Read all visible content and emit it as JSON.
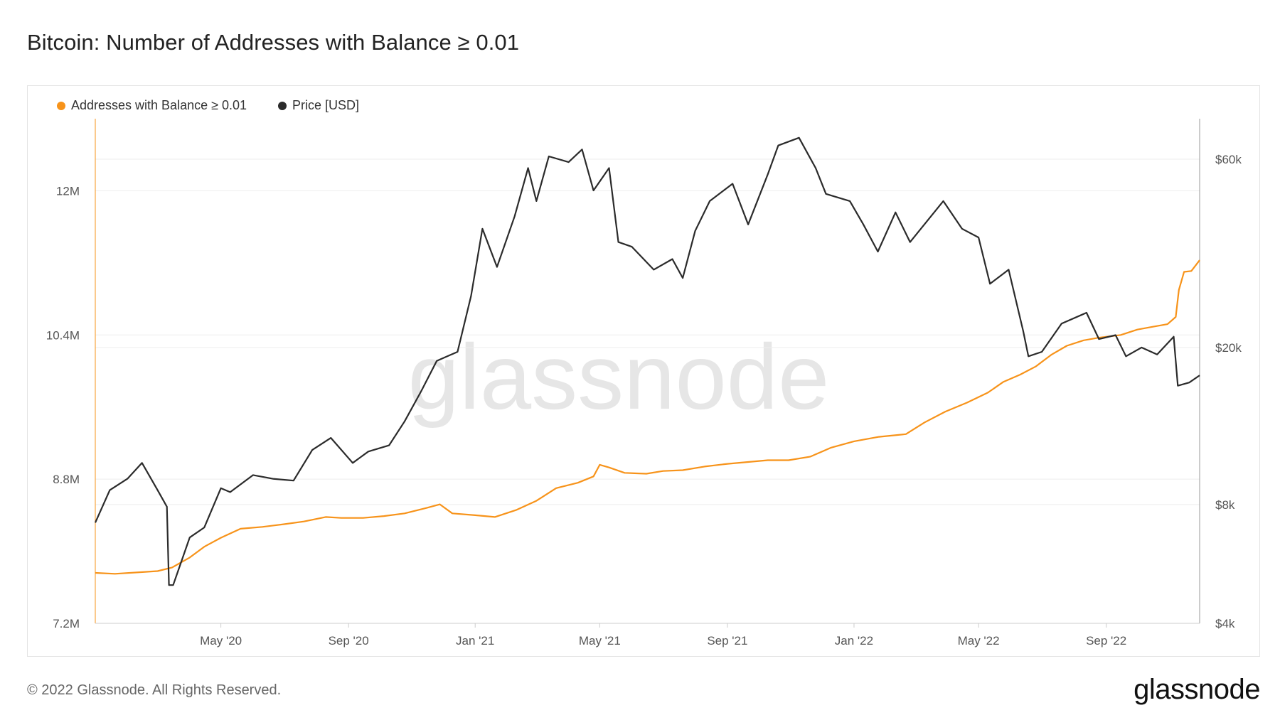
{
  "title": "Bitcoin: Number of Addresses with Balance ≥ 0.01",
  "footer": "© 2022 Glassnode. All Rights Reserved.",
  "brand": "glassnode",
  "watermark": "glassnode",
  "colors": {
    "addresses": "#f7931a",
    "price": "#2b2b2b",
    "grid": "#eeeeee",
    "axis": "#cccccc"
  },
  "chart_data": {
    "type": "line",
    "grid": true,
    "legend_position": "top-left",
    "x_start": "2020-01-01",
    "x_end": "2022-11-30",
    "x_ticks": [
      {
        "date": "2020-05-01",
        "label": "May '20"
      },
      {
        "date": "2020-09-01",
        "label": "Sep '20"
      },
      {
        "date": "2021-01-01",
        "label": "Jan '21"
      },
      {
        "date": "2021-05-01",
        "label": "May '21"
      },
      {
        "date": "2021-09-01",
        "label": "Sep '21"
      },
      {
        "date": "2022-01-01",
        "label": "Jan '22"
      },
      {
        "date": "2022-05-01",
        "label": "May '22"
      },
      {
        "date": "2022-09-01",
        "label": "Sep '22"
      }
    ],
    "y_left": {
      "min": 7200000,
      "max": 12800000,
      "ticks": [
        {
          "value": 7200000,
          "label": "7.2M"
        },
        {
          "value": 8800000,
          "label": "8.8M"
        },
        {
          "value": 10400000,
          "label": "10.4M"
        },
        {
          "value": 12000000,
          "label": "12M"
        }
      ]
    },
    "y_right": {
      "scale": "log",
      "min": 4000,
      "max": 76000,
      "ticks": [
        {
          "value": 4000,
          "label": "$4k"
        },
        {
          "value": 8000,
          "label": "$8k"
        },
        {
          "value": 20000,
          "label": "$20k"
        },
        {
          "value": 60000,
          "label": "$60k"
        }
      ]
    },
    "series": [
      {
        "name": "Addresses with Balance ≥ 0.01",
        "axis": "left",
        "points": [
          [
            "2020-01-01",
            7760000
          ],
          [
            "2020-01-20",
            7750000
          ],
          [
            "2020-02-10",
            7765000
          ],
          [
            "2020-03-01",
            7780000
          ],
          [
            "2020-03-15",
            7820000
          ],
          [
            "2020-04-01",
            7930000
          ],
          [
            "2020-04-15",
            8050000
          ],
          [
            "2020-05-01",
            8150000
          ],
          [
            "2020-05-20",
            8250000
          ],
          [
            "2020-06-10",
            8270000
          ],
          [
            "2020-07-01",
            8300000
          ],
          [
            "2020-07-20",
            8330000
          ],
          [
            "2020-08-10",
            8380000
          ],
          [
            "2020-08-25",
            8370000
          ],
          [
            "2020-09-15",
            8370000
          ],
          [
            "2020-10-05",
            8390000
          ],
          [
            "2020-10-25",
            8420000
          ],
          [
            "2020-11-15",
            8480000
          ],
          [
            "2020-11-28",
            8520000
          ],
          [
            "2020-12-10",
            8420000
          ],
          [
            "2021-01-01",
            8400000
          ],
          [
            "2021-01-20",
            8380000
          ],
          [
            "2021-02-10",
            8460000
          ],
          [
            "2021-03-01",
            8560000
          ],
          [
            "2021-03-20",
            8700000
          ],
          [
            "2021-04-10",
            8760000
          ],
          [
            "2021-04-25",
            8830000
          ],
          [
            "2021-05-01",
            8960000
          ],
          [
            "2021-05-10",
            8930000
          ],
          [
            "2021-05-25",
            8870000
          ],
          [
            "2021-06-15",
            8860000
          ],
          [
            "2021-07-01",
            8890000
          ],
          [
            "2021-07-20",
            8900000
          ],
          [
            "2021-08-10",
            8940000
          ],
          [
            "2021-09-01",
            8970000
          ],
          [
            "2021-09-20",
            8990000
          ],
          [
            "2021-10-10",
            9010000
          ],
          [
            "2021-10-30",
            9010000
          ],
          [
            "2021-11-20",
            9050000
          ],
          [
            "2021-12-10",
            9150000
          ],
          [
            "2022-01-01",
            9220000
          ],
          [
            "2022-01-25",
            9270000
          ],
          [
            "2022-02-20",
            9300000
          ],
          [
            "2022-03-10",
            9430000
          ],
          [
            "2022-03-30",
            9550000
          ],
          [
            "2022-04-20",
            9650000
          ],
          [
            "2022-05-10",
            9760000
          ],
          [
            "2022-05-25",
            9880000
          ],
          [
            "2022-06-10",
            9960000
          ],
          [
            "2022-06-25",
            10050000
          ],
          [
            "2022-07-10",
            10180000
          ],
          [
            "2022-07-25",
            10280000
          ],
          [
            "2022-08-10",
            10340000
          ],
          [
            "2022-08-25",
            10370000
          ],
          [
            "2022-09-15",
            10400000
          ],
          [
            "2022-10-01",
            10460000
          ],
          [
            "2022-10-15",
            10490000
          ],
          [
            "2022-10-30",
            10520000
          ],
          [
            "2022-11-07",
            10600000
          ],
          [
            "2022-11-10",
            10900000
          ],
          [
            "2022-11-15",
            11100000
          ],
          [
            "2022-11-22",
            11110000
          ],
          [
            "2022-11-30",
            11230000
          ]
        ]
      },
      {
        "name": "Price [USD]",
        "axis": "right",
        "points": [
          [
            "2020-01-01",
            7200
          ],
          [
            "2020-01-15",
            8700
          ],
          [
            "2020-02-01",
            9300
          ],
          [
            "2020-02-15",
            10200
          ],
          [
            "2020-03-01",
            8700
          ],
          [
            "2020-03-10",
            7900
          ],
          [
            "2020-03-12",
            5000
          ],
          [
            "2020-03-16",
            5000
          ],
          [
            "2020-04-01",
            6600
          ],
          [
            "2020-04-15",
            7000
          ],
          [
            "2020-05-01",
            8800
          ],
          [
            "2020-05-10",
            8600
          ],
          [
            "2020-06-01",
            9500
          ],
          [
            "2020-06-20",
            9300
          ],
          [
            "2020-07-10",
            9200
          ],
          [
            "2020-07-28",
            11000
          ],
          [
            "2020-08-15",
            11800
          ],
          [
            "2020-09-05",
            10200
          ],
          [
            "2020-09-20",
            10900
          ],
          [
            "2020-10-10",
            11300
          ],
          [
            "2020-10-25",
            13000
          ],
          [
            "2020-11-10",
            15500
          ],
          [
            "2020-11-25",
            18500
          ],
          [
            "2020-12-15",
            19500
          ],
          [
            "2020-12-28",
            27000
          ],
          [
            "2021-01-08",
            40000
          ],
          [
            "2021-01-22",
            32000
          ],
          [
            "2021-02-08",
            43000
          ],
          [
            "2021-02-21",
            57000
          ],
          [
            "2021-03-01",
            47000
          ],
          [
            "2021-03-13",
            61000
          ],
          [
            "2021-04-01",
            59000
          ],
          [
            "2021-04-14",
            63500
          ],
          [
            "2021-04-25",
            50000
          ],
          [
            "2021-05-10",
            57000
          ],
          [
            "2021-05-19",
            37000
          ],
          [
            "2021-06-01",
            36000
          ],
          [
            "2021-06-22",
            31500
          ],
          [
            "2021-07-10",
            33500
          ],
          [
            "2021-07-20",
            30000
          ],
          [
            "2021-08-01",
            39500
          ],
          [
            "2021-08-15",
            47000
          ],
          [
            "2021-09-06",
            52000
          ],
          [
            "2021-09-21",
            41000
          ],
          [
            "2021-10-10",
            55000
          ],
          [
            "2021-10-20",
            65000
          ],
          [
            "2021-11-09",
            68000
          ],
          [
            "2021-11-25",
            57000
          ],
          [
            "2021-12-05",
            49000
          ],
          [
            "2021-12-28",
            47000
          ],
          [
            "2022-01-10",
            41000
          ],
          [
            "2022-01-24",
            35000
          ],
          [
            "2022-02-10",
            44000
          ],
          [
            "2022-02-24",
            37000
          ],
          [
            "2022-03-28",
            47000
          ],
          [
            "2022-04-15",
            40000
          ],
          [
            "2022-05-01",
            38000
          ],
          [
            "2022-05-12",
            29000
          ],
          [
            "2022-05-30",
            31500
          ],
          [
            "2022-06-13",
            22000
          ],
          [
            "2022-06-18",
            19000
          ],
          [
            "2022-07-01",
            19500
          ],
          [
            "2022-07-20",
            23000
          ],
          [
            "2022-08-13",
            24500
          ],
          [
            "2022-08-25",
            21000
          ],
          [
            "2022-09-10",
            21500
          ],
          [
            "2022-09-20",
            19000
          ],
          [
            "2022-10-05",
            20000
          ],
          [
            "2022-10-20",
            19200
          ],
          [
            "2022-11-05",
            21300
          ],
          [
            "2022-11-09",
            16000
          ],
          [
            "2022-11-20",
            16300
          ],
          [
            "2022-11-30",
            17000
          ]
        ]
      }
    ]
  }
}
